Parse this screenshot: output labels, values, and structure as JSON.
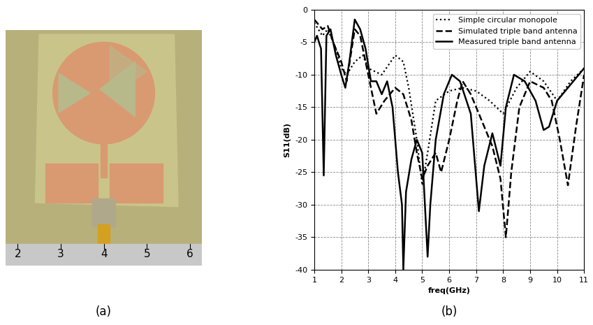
{
  "photo": {
    "caption": "(a)",
    "ruler_labels": [
      2,
      3,
      4,
      5,
      6
    ]
  },
  "chart_caption": "(b)",
  "chart_data": {
    "type": "line",
    "x_label": "freq(GHz)",
    "y_label": "S11(dB)",
    "xlim": [
      1,
      11
    ],
    "xticks": [
      1,
      2,
      3,
      4,
      5,
      6,
      7,
      8,
      9,
      10,
      11
    ],
    "ylim": [
      -40,
      0
    ],
    "yticks": [
      -40,
      -35,
      -30,
      -25,
      -20,
      -15,
      -10,
      -5,
      0
    ],
    "grid": true,
    "legend": "upper right",
    "series": [
      {
        "name": "Simple circular monopole",
        "color": "#000000",
        "line_style": "dotted",
        "x": [
          1.0,
          1.3,
          1.5,
          1.8,
          2.0,
          2.2,
          2.5,
          2.8,
          3.0,
          3.5,
          4.0,
          4.3,
          4.5,
          4.8,
          5.0,
          5.2,
          5.5,
          6.0,
          6.5,
          7.0,
          7.5,
          8.0,
          8.5,
          9.0,
          9.5,
          10.0,
          10.5,
          11.0
        ],
        "values": [
          -2,
          -4,
          -3,
          -6,
          -9,
          -10,
          -8,
          -7,
          -9,
          -10,
          -7,
          -8,
          -12,
          -20,
          -27,
          -22,
          -14,
          -12.5,
          -12,
          -12.5,
          -14,
          -16,
          -12,
          -9.5,
          -11,
          -14,
          -11,
          -9
        ]
      },
      {
        "name": "Simulated triple band antenna",
        "color": "#000000",
        "line_style": "dashed",
        "x": [
          1.0,
          1.3,
          1.5,
          1.7,
          2.0,
          2.2,
          2.5,
          2.7,
          3.0,
          3.3,
          3.6,
          4.0,
          4.3,
          4.6,
          4.8,
          5.0,
          5.2,
          5.5,
          5.7,
          6.0,
          6.3,
          6.5,
          6.8,
          7.2,
          7.6,
          7.9,
          8.1,
          8.3,
          8.6,
          9.0,
          9.5,
          9.8,
          10.1,
          10.4,
          10.7,
          11.0
        ],
        "values": [
          -1.5,
          -3,
          -2.5,
          -5,
          -8,
          -11,
          -3,
          -4,
          -10,
          -16,
          -14,
          -12,
          -13,
          -17,
          -22,
          -26,
          -24,
          -22,
          -25,
          -20,
          -14,
          -11,
          -13,
          -17,
          -21,
          -26,
          -35,
          -25,
          -15,
          -11,
          -12,
          -14,
          -20,
          -27,
          -18,
          -10
        ]
      },
      {
        "name": "Measured triple band antenna",
        "color": "#000000",
        "line_style": "solid",
        "x": [
          1.0,
          1.1,
          1.25,
          1.35,
          1.45,
          1.6,
          1.8,
          2.0,
          2.15,
          2.3,
          2.5,
          2.7,
          2.9,
          3.1,
          3.3,
          3.5,
          3.7,
          3.9,
          4.1,
          4.25,
          4.3,
          4.4,
          4.6,
          4.8,
          5.0,
          5.2,
          5.3,
          5.5,
          5.8,
          6.1,
          6.4,
          6.8,
          7.1,
          7.3,
          7.6,
          7.9,
          8.1,
          8.4,
          8.8,
          9.2,
          9.5,
          9.7,
          10.0,
          10.4,
          10.8,
          11.0
        ],
        "values": [
          -5,
          -4,
          -6,
          -25.5,
          -4,
          -3,
          -7,
          -10,
          -12,
          -8,
          -1.5,
          -3,
          -6,
          -11,
          -11,
          -13,
          -11,
          -15,
          -25,
          -30,
          -40,
          -28,
          -23,
          -20,
          -22,
          -38,
          -30,
          -20,
          -13,
          -10,
          -11,
          -16,
          -31,
          -24,
          -19,
          -24,
          -15,
          -10,
          -11,
          -14,
          -18.5,
          -18,
          -14,
          -12,
          -10,
          -9
        ]
      }
    ]
  }
}
